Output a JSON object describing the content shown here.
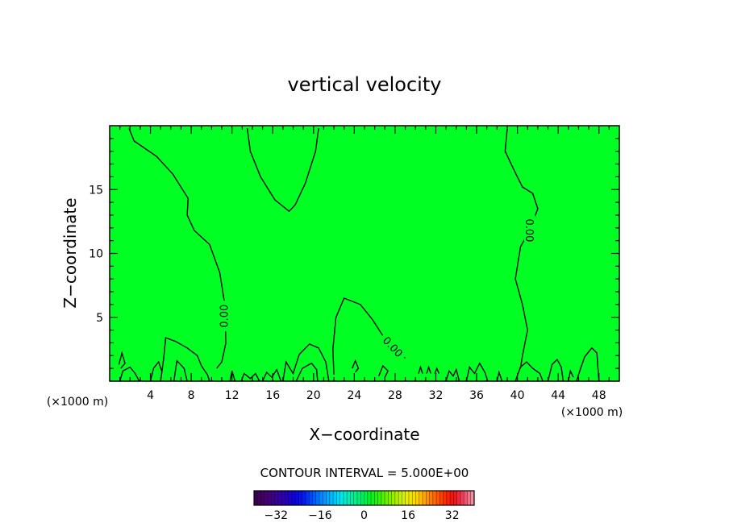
{
  "chart_data": {
    "type": "heatmap",
    "title": "vertical velocity",
    "xlabel": "X−coordinate",
    "ylabel": "Z−coordinate",
    "x_unit": "(×1000 m)",
    "z_unit": "(×1000 m)",
    "xlim": [
      0,
      50
    ],
    "ylim": [
      0,
      20
    ],
    "x_ticks": [
      4,
      8,
      12,
      16,
      20,
      24,
      28,
      32,
      36,
      40,
      44,
      48
    ],
    "x_tick_labels": [
      "4",
      "8",
      "12",
      "16",
      "20",
      "24",
      "28",
      "32",
      "36",
      "40",
      "44",
      "48"
    ],
    "y_ticks": [
      5,
      10,
      15
    ],
    "y_tick_labels": [
      "5",
      "10",
      "15"
    ],
    "field_color": "#00ff22",
    "contour_color": "#000000",
    "contour_level_label": "0.00",
    "contour_interval_text": "CONTOUR INTERVAL = 5.000E+00",
    "colorbar": {
      "min": -40,
      "max": 40,
      "ticks": [
        -32,
        -16,
        0,
        16,
        32
      ],
      "tick_labels": [
        "−32",
        "−16",
        "0",
        "16",
        "32"
      ],
      "colors": [
        "#3a0050",
        "#44006a",
        "#3c0090",
        "#2a00b0",
        "#1000d8",
        "#0018f0",
        "#0050ff",
        "#0088ff",
        "#00b8ff",
        "#00e4f0",
        "#00f0b0",
        "#00f070",
        "#00f030",
        "#30f000",
        "#70f000",
        "#b0f000",
        "#e8f000",
        "#ffd800",
        "#ffa000",
        "#ff6800",
        "#ff3000",
        "#f01010",
        "#f04060",
        "#f090a0"
      ]
    },
    "contours": [
      [
        [
          1.9,
          19.8
        ],
        [
          2.4,
          18.8
        ],
        [
          4.6,
          17.6
        ],
        [
          6.2,
          16.2
        ],
        [
          7.7,
          14.3
        ],
        [
          7.6,
          13.0
        ],
        [
          8.3,
          11.8
        ],
        [
          9.8,
          10.7
        ],
        [
          10.8,
          8.5
        ],
        [
          11.3,
          6.0
        ],
        [
          11.4,
          3.0
        ],
        [
          11.0,
          1.5
        ],
        [
          10.5,
          1.0
        ]
      ],
      [
        [
          13.5,
          19.8
        ],
        [
          13.8,
          18.0
        ],
        [
          14.8,
          16.0
        ],
        [
          16.2,
          14.2
        ],
        [
          17.6,
          13.3
        ],
        [
          18.2,
          13.8
        ],
        [
          19.2,
          15.5
        ],
        [
          20.2,
          18.0
        ],
        [
          20.5,
          19.8
        ]
      ],
      [
        [
          22.0,
          0.5
        ],
        [
          21.9,
          2.5
        ],
        [
          22.2,
          5.0
        ],
        [
          23.0,
          6.5
        ],
        [
          24.6,
          6.0
        ],
        [
          25.8,
          4.8
        ],
        [
          27.0,
          3.3
        ],
        [
          28.3,
          2.3
        ],
        [
          29.0,
          1.8
        ]
      ],
      [
        [
          39.0,
          19.8
        ],
        [
          38.8,
          18.0
        ],
        [
          39.8,
          16.3
        ],
        [
          40.5,
          15.2
        ],
        [
          41.5,
          14.7
        ],
        [
          42.0,
          13.5
        ],
        [
          41.3,
          12.0
        ],
        [
          40.3,
          10.5
        ],
        [
          39.8,
          8.0
        ],
        [
          40.5,
          6.0
        ],
        [
          41.0,
          4.0
        ],
        [
          40.5,
          2.0
        ],
        [
          40.3,
          1.0
        ]
      ]
    ],
    "surface_contours": [
      [
        [
          1.0,
          0.0
        ],
        [
          1.3,
          0.8
        ],
        [
          2.0,
          1.1
        ],
        [
          2.5,
          0.6
        ],
        [
          2.9,
          0.0
        ]
      ],
      [
        [
          5.0,
          0.0
        ],
        [
          5.3,
          1.8
        ],
        [
          5.5,
          3.4
        ],
        [
          6.5,
          3.1
        ],
        [
          7.6,
          2.6
        ],
        [
          8.6,
          2.0
        ],
        [
          9.0,
          1.2
        ],
        [
          9.6,
          0.5
        ],
        [
          9.8,
          0.0
        ]
      ],
      [
        [
          4.0,
          0.0
        ],
        [
          4.3,
          1.0
        ],
        [
          4.8,
          1.5
        ],
        [
          5.1,
          0.8
        ]
      ],
      [
        [
          6.3,
          0.0
        ],
        [
          6.6,
          1.6
        ],
        [
          7.3,
          1.0
        ],
        [
          7.6,
          0.0
        ]
      ],
      [
        [
          0.9,
          1.3
        ],
        [
          1.2,
          2.2
        ],
        [
          1.5,
          1.4
        ],
        [
          1.1,
          1.0
        ]
      ],
      [
        [
          11.8,
          0.0
        ],
        [
          12.0,
          0.8
        ],
        [
          12.3,
          0.0
        ]
      ],
      [
        [
          12.9,
          0.0
        ],
        [
          13.2,
          0.6
        ],
        [
          13.8,
          0.2
        ],
        [
          14.3,
          0.6
        ],
        [
          14.7,
          0.0
        ]
      ],
      [
        [
          15.0,
          0.0
        ],
        [
          15.4,
          0.7
        ],
        [
          15.9,
          0.3
        ],
        [
          16.4,
          0.9
        ],
        [
          16.8,
          0.0
        ]
      ],
      [
        [
          17.0,
          0.0
        ],
        [
          17.3,
          1.5
        ],
        [
          18.0,
          0.6
        ],
        [
          18.6,
          2.1
        ],
        [
          19.6,
          2.9
        ],
        [
          20.5,
          2.6
        ],
        [
          21.2,
          1.5
        ],
        [
          21.5,
          0.0
        ]
      ],
      [
        [
          18.3,
          0.0
        ],
        [
          18.9,
          1.0
        ],
        [
          19.8,
          1.4
        ],
        [
          20.3,
          0.9
        ],
        [
          20.4,
          0.0
        ]
      ],
      [
        [
          23.8,
          1.0
        ],
        [
          24.1,
          1.6
        ],
        [
          24.4,
          1.0
        ],
        [
          24.1,
          0.7
        ]
      ],
      [
        [
          26.4,
          0.4
        ],
        [
          26.8,
          1.2
        ],
        [
          27.3,
          0.8
        ],
        [
          27.0,
          0.3
        ]
      ],
      [
        [
          30.3,
          0.6
        ],
        [
          30.5,
          1.1
        ],
        [
          30.7,
          0.6
        ]
      ],
      [
        [
          31.1,
          0.6
        ],
        [
          31.3,
          1.1
        ],
        [
          31.5,
          0.6
        ]
      ],
      [
        [
          31.9,
          0.6
        ],
        [
          32.1,
          1.0
        ],
        [
          32.3,
          0.6
        ]
      ],
      [
        [
          33.0,
          0.0
        ],
        [
          33.3,
          0.8
        ],
        [
          33.7,
          0.4
        ],
        [
          34.0,
          0.9
        ],
        [
          34.3,
          0.0
        ]
      ],
      [
        [
          35.0,
          0.0
        ],
        [
          35.3,
          1.1
        ],
        [
          35.8,
          0.6
        ],
        [
          36.3,
          1.4
        ],
        [
          36.8,
          0.7
        ],
        [
          37.1,
          0.0
        ]
      ],
      [
        [
          38.0,
          0.0
        ],
        [
          38.2,
          0.7
        ],
        [
          38.5,
          0.0
        ]
      ],
      [
        [
          39.8,
          0.0
        ],
        [
          40.3,
          1.1
        ],
        [
          40.9,
          1.5
        ],
        [
          41.5,
          1.0
        ],
        [
          42.2,
          0.6
        ],
        [
          42.5,
          0.0
        ]
      ],
      [
        [
          43.0,
          0.0
        ],
        [
          43.4,
          1.3
        ],
        [
          43.9,
          1.7
        ],
        [
          44.3,
          1.1
        ],
        [
          44.5,
          0.0
        ]
      ],
      [
        [
          45.8,
          0.0
        ],
        [
          46.2,
          1.0
        ],
        [
          46.6,
          1.9
        ],
        [
          47.3,
          2.6
        ],
        [
          47.8,
          2.2
        ],
        [
          47.9,
          1.0
        ],
        [
          48.0,
          0.0
        ]
      ],
      [
        [
          45.0,
          0.0
        ],
        [
          45.2,
          0.8
        ],
        [
          45.5,
          0.3
        ]
      ]
    ]
  }
}
